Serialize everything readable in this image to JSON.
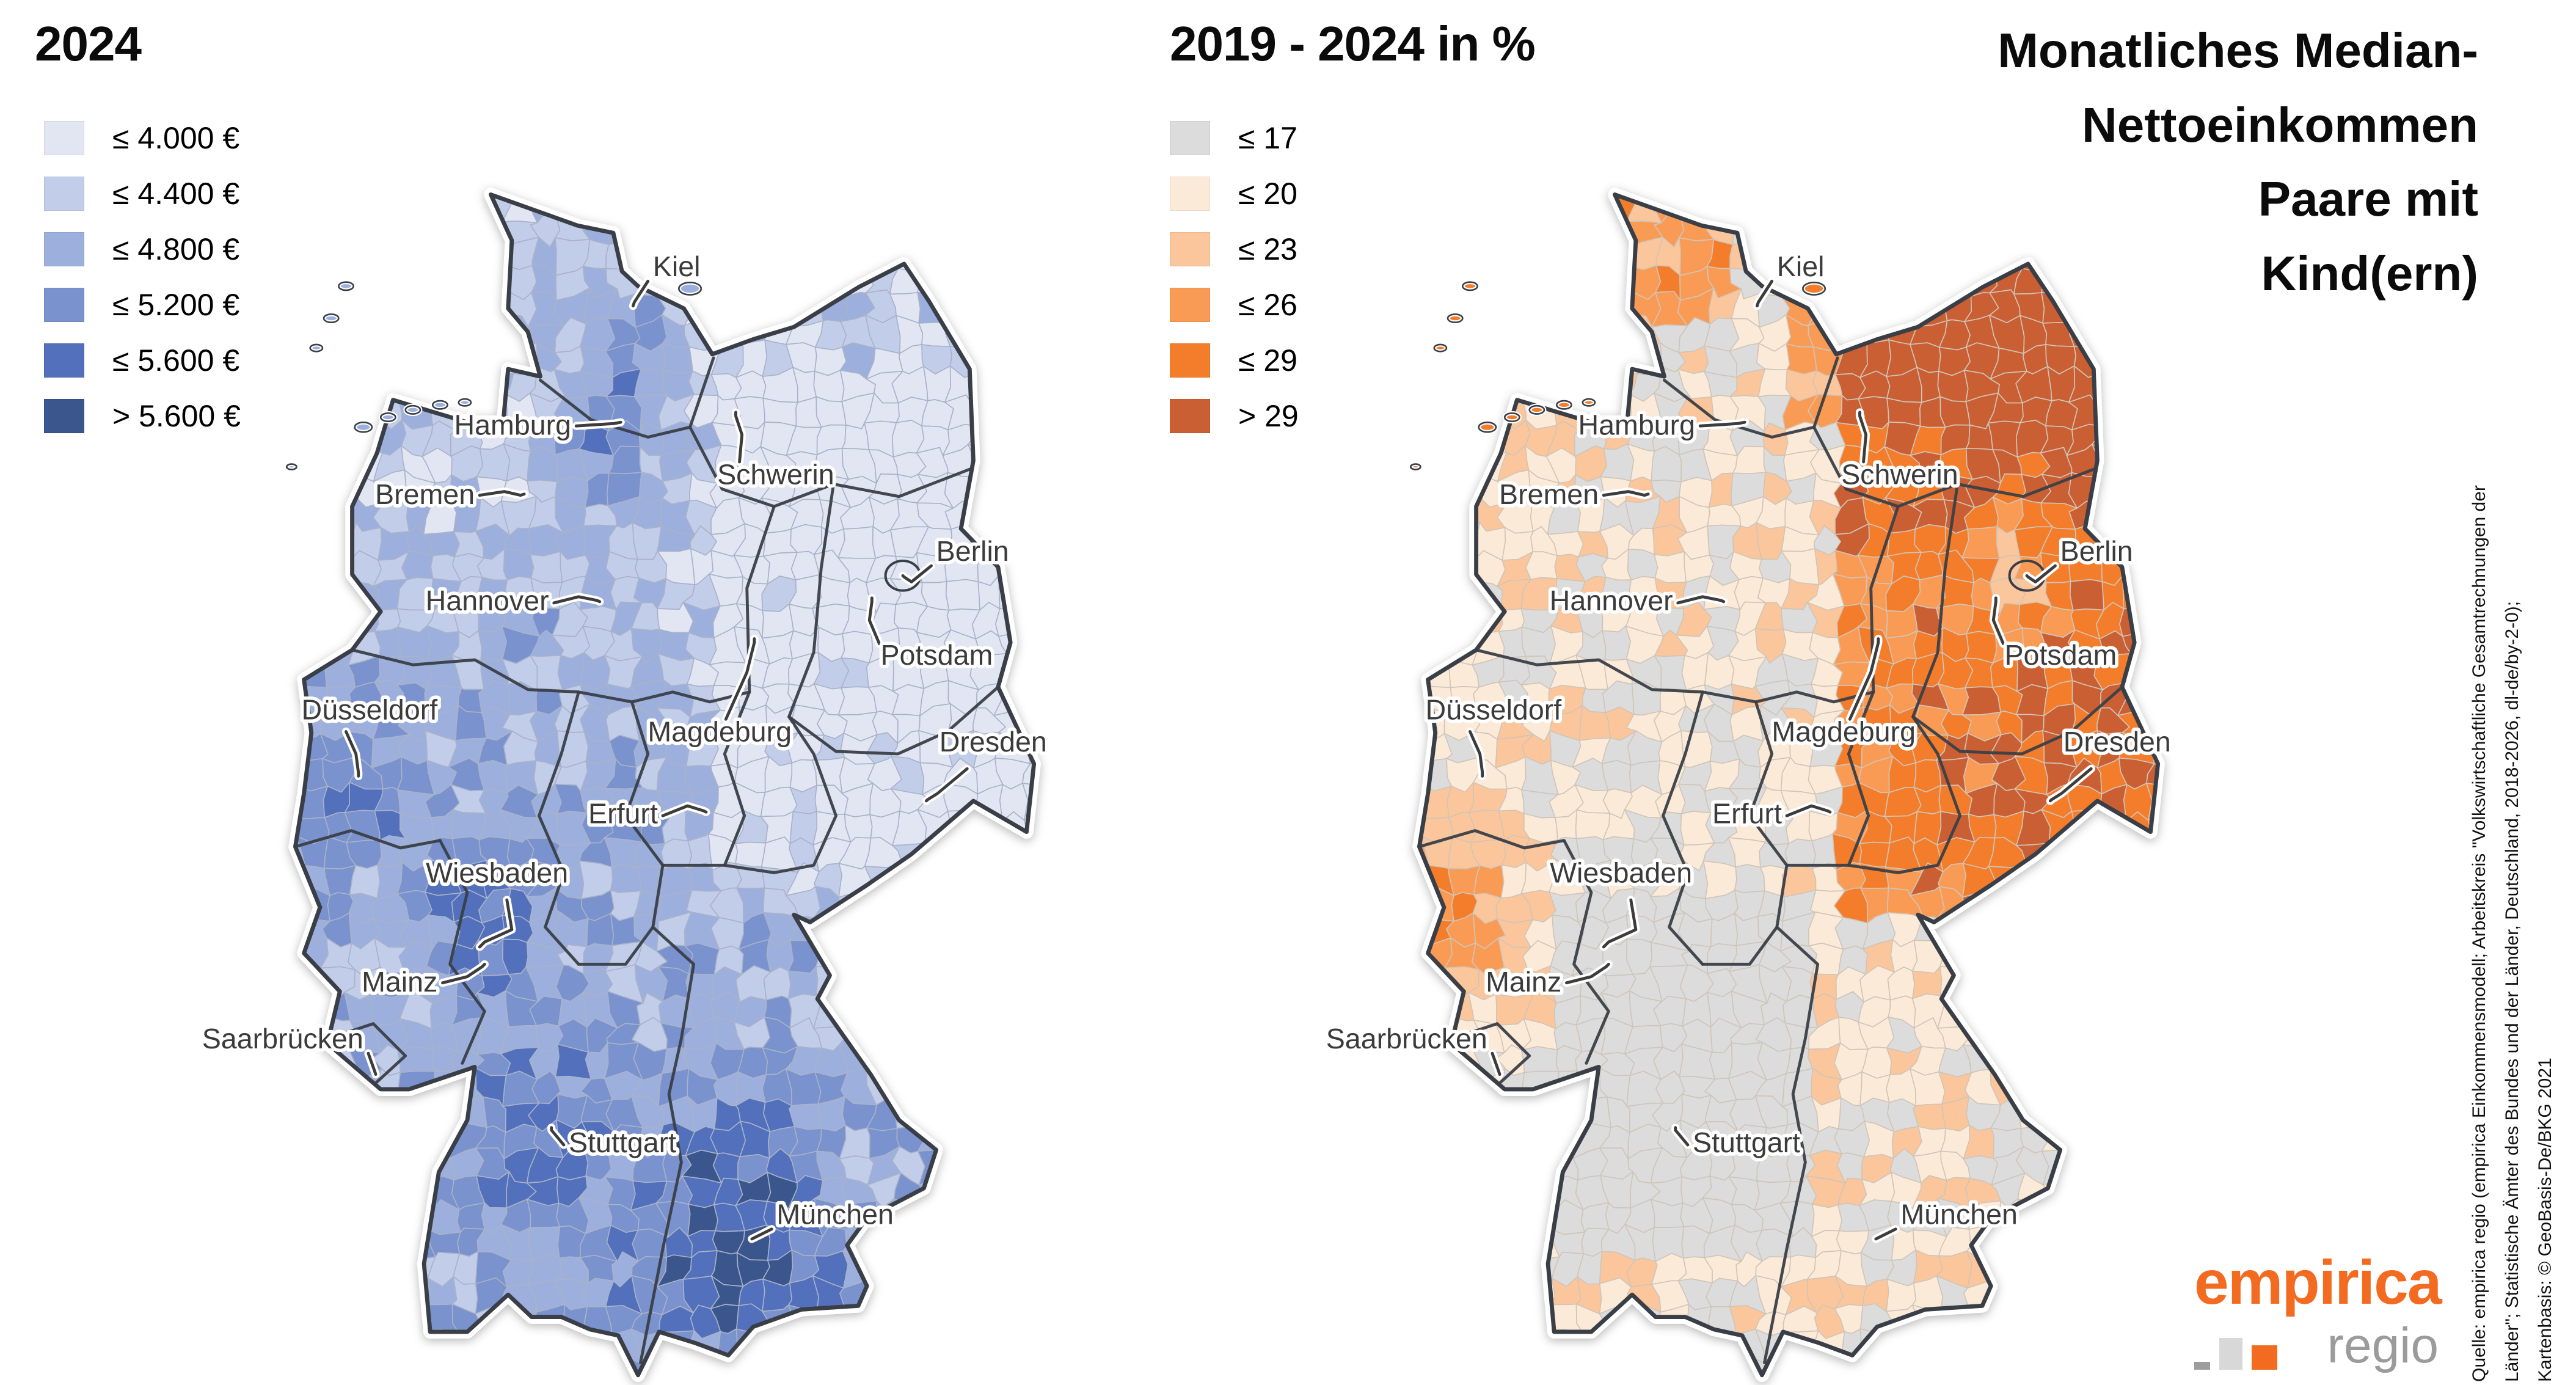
{
  "left_panel": {
    "title": "2024",
    "legend": [
      {
        "label": "≤ 4.000 €",
        "color": "#e2e6f3"
      },
      {
        "label": "≤ 4.400 €",
        "color": "#c2cdea"
      },
      {
        "label": "≤ 4.800 €",
        "color": "#9db0dd"
      },
      {
        "label": "≤ 5.200 €",
        "color": "#7a92cd"
      },
      {
        "label": "≤ 5.600 €",
        "color": "#5270bb"
      },
      {
        "label": "> 5.600 €",
        "color": "#3a568c"
      }
    ],
    "district_border_color": "#a9b2c8",
    "state_border_color": "#3a3f47"
  },
  "right_panel": {
    "title": "2019 - 2024 in %",
    "legend": [
      {
        "label": "≤ 17",
        "color": "#dcdcdc"
      },
      {
        "label": "≤ 20",
        "color": "#fcead9"
      },
      {
        "label": "≤ 23",
        "color": "#fbc69b"
      },
      {
        "label": "≤ 26",
        "color": "#fa9b55"
      },
      {
        "label": "≤ 29",
        "color": "#f47d2b"
      },
      {
        "label": "> 29",
        "color": "#cb5f34"
      }
    ],
    "district_border_color": "#cfc5b9",
    "state_border_color": "#3a3f47"
  },
  "main_title": {
    "lines": [
      "Monatliches Median-",
      "Nettoeinkommen",
      "Paare mit",
      "Kind(ern)"
    ]
  },
  "cities": [
    {
      "name": "Kiel",
      "p": [
        306,
        108
      ],
      "l": [
        322,
        84
      ],
      "a": "start",
      "lead": [
        [
          318,
          88
        ],
        [
          307,
          105
        ]
      ]
    },
    {
      "name": "Hamburg",
      "p": [
        296,
        202
      ],
      "l": [
        256,
        212
      ],
      "a": "end",
      "lead": [
        [
          260,
          205
        ],
        [
          291,
          203
        ]
      ]
    },
    {
      "name": "Schwerin",
      "p": [
        389,
        194
      ],
      "l": [
        374,
        252
      ],
      "a": "start",
      "lead": [
        [
          392,
          234
        ],
        [
          394,
          212
        ],
        [
          389,
          197
        ]
      ]
    },
    {
      "name": "Bremen",
      "p": [
        218,
        260
      ],
      "l": [
        178,
        268
      ],
      "a": "end",
      "lead": [
        [
          182,
          261
        ],
        [
          202,
          258
        ],
        [
          215,
          261
        ]
      ]
    },
    {
      "name": "Berlin",
      "p": [
        524,
        326
      ],
      "l": [
        551,
        314
      ],
      "a": "start",
      "lead": [
        [
          547,
          318
        ],
        [
          531,
          331
        ],
        [
          525,
          327
        ]
      ]
    },
    {
      "name": "Hannover",
      "p": [
        279,
        347
      ],
      "l": [
        238,
        354
      ],
      "a": "end",
      "lead": [
        [
          242,
          348
        ],
        [
          262,
          343
        ],
        [
          277,
          346
        ]
      ]
    },
    {
      "name": "Potsdam",
      "p": [
        499,
        344
      ],
      "l": [
        506,
        398
      ],
      "a": "start",
      "lead": [
        [
          505,
          381
        ],
        [
          497,
          362
        ],
        [
          499,
          347
        ]
      ]
    },
    {
      "name": "Magdeburg",
      "p": [
        404,
        377
      ],
      "l": [
        376,
        460
      ],
      "a": "middle",
      "lead": [
        [
          381,
          442
        ],
        [
          398,
          404
        ],
        [
          404,
          380
        ]
      ]
    },
    {
      "name": "Düsseldorf",
      "p": [
        84,
        488
      ],
      "l": [
        38,
        442
      ],
      "a": "start",
      "lead": [
        [
          74,
          452
        ],
        [
          82,
          470
        ],
        [
          84,
          485
        ]
      ]
    },
    {
      "name": "Dresden",
      "p": [
        543,
        508
      ],
      "l": [
        597,
        468
      ],
      "a": "middle",
      "lead": [
        [
          576,
          482
        ],
        [
          552,
          502
        ],
        [
          544,
          507
        ]
      ]
    },
    {
      "name": "Erfurt",
      "p": [
        365,
        517
      ],
      "l": [
        326,
        526
      ],
      "a": "end",
      "lead": [
        [
          330,
          520
        ],
        [
          350,
          512
        ],
        [
          363,
          516
        ]
      ]
    },
    {
      "name": "Wiesbaden",
      "p": [
        182,
        626
      ],
      "l": [
        196,
        574
      ],
      "a": "middle",
      "lead": [
        [
          204,
          588
        ],
        [
          208,
          612
        ],
        [
          186,
          622
        ]
      ]
    },
    {
      "name": "Mainz",
      "p": [
        186,
        640
      ],
      "l": [
        148,
        662
      ],
      "a": "end",
      "lead": [
        [
          152,
          655
        ],
        [
          172,
          650
        ],
        [
          184,
          642
        ]
      ]
    },
    {
      "name": "Saarbrücken",
      "p": [
        98,
        729
      ],
      "l": [
        88,
        708
      ],
      "a": "end",
      "lead": [
        [
          92,
          712
        ],
        [
          97,
          726
        ]
      ]
    },
    {
      "name": "Stuttgart",
      "p": [
        240,
        772
      ],
      "l": [
        254,
        792
      ],
      "a": "start",
      "lead": [
        [
          250,
          786
        ],
        [
          240,
          774
        ]
      ]
    },
    {
      "name": "München",
      "p": [
        402,
        862
      ],
      "l": [
        422,
        850
      ],
      "a": "start",
      "lead": [
        [
          418,
          854
        ],
        [
          404,
          861
        ]
      ]
    }
  ],
  "attribution": {
    "lines": [
      "Quelle: empirica regio (empirica Einkommensmodell; Arbeitskreis \"Volkswirtschaftliche Gesamtrechnungen der",
      "Länder\"; Statistische Ämter des Bundes und der Länder, Deutschland, 2018-2026, dl-de/by-2-0);",
      "Kartenbasis: © GeoBasis-De/BKG 2021"
    ]
  },
  "logo": {
    "brand": "empirica",
    "sub": "regio",
    "brand_color": "#f26b21",
    "sub_color": "#9b9b9b",
    "square_colors": [
      "#9d9d9d",
      "#d8d8d8",
      "#f26b21"
    ]
  }
}
